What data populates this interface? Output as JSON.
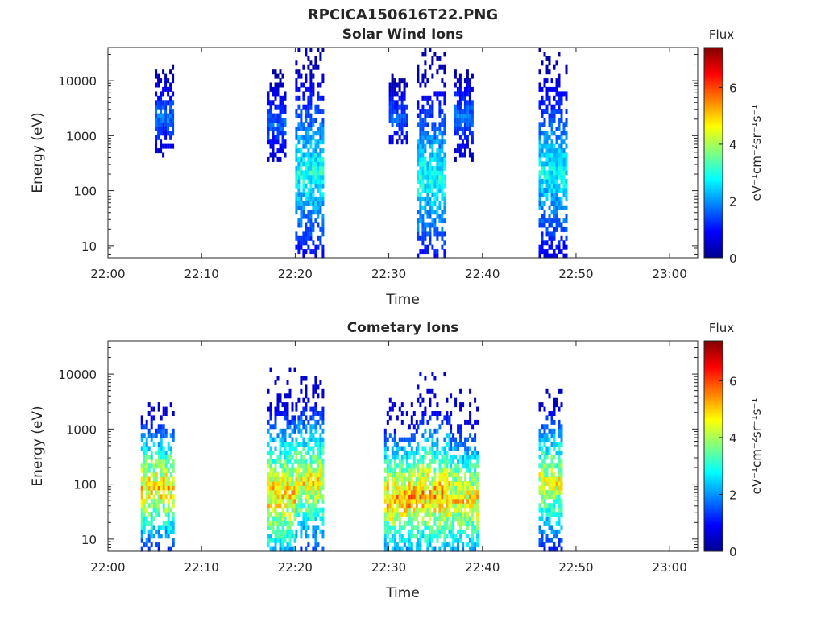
{
  "figure_title": "RPCICA150616T22.PNG",
  "chart_data": [
    {
      "type": "heatmap",
      "title": "Solar Wind Ions",
      "xlabel": "Time",
      "ylabel": "Energy (eV)",
      "x_ticks": [
        "22:00",
        "22:10",
        "22:20",
        "22:30",
        "22:40",
        "22:50",
        "23:00"
      ],
      "x_range": [
        "22:00",
        "23:03"
      ],
      "y_scale": "log",
      "y_ticks": [
        "10",
        "100",
        "1000",
        "10000"
      ],
      "y_range": [
        6,
        40000
      ],
      "colorbar": {
        "label": "Flux",
        "units": "eV⁻¹cm⁻²sr⁻¹s⁻¹",
        "ticks": [
          "0",
          "2",
          "4",
          "6"
        ],
        "range": [
          0,
          7.4
        ],
        "colormap": "jet"
      },
      "bursts": [
        {
          "t_start": "22:05",
          "t_end": "22:07",
          "e_low": 400,
          "e_high": 16000,
          "peak_e": 2000,
          "flux_max": 2.2
        },
        {
          "t_start": "22:17",
          "t_end": "22:19",
          "e_low": 300,
          "e_high": 15000,
          "peak_e": 1500,
          "flux_max": 2.0
        },
        {
          "t_start": "22:20",
          "t_end": "22:23",
          "e_low": 6,
          "e_high": 40000,
          "peak_e": 200,
          "flux_max": 3.6
        },
        {
          "t_start": "22:30",
          "t_end": "22:32",
          "e_low": 600,
          "e_high": 15000,
          "peak_e": 2000,
          "flux_max": 2.0
        },
        {
          "t_start": "22:33",
          "t_end": "22:36",
          "e_low": 6,
          "e_high": 35000,
          "peak_e": 150,
          "flux_max": 3.6
        },
        {
          "t_start": "22:37",
          "t_end": "22:39",
          "e_low": 300,
          "e_high": 15000,
          "peak_e": 2000,
          "flux_max": 2.2
        },
        {
          "t_start": "22:46",
          "t_end": "22:49",
          "e_low": 6,
          "e_high": 35000,
          "peak_e": 200,
          "flux_max": 3.4
        }
      ]
    },
    {
      "type": "heatmap",
      "title": "Cometary Ions",
      "xlabel": "Time",
      "ylabel": "Energy (eV)",
      "x_ticks": [
        "22:00",
        "22:10",
        "22:20",
        "22:30",
        "22:40",
        "22:50",
        "23:00"
      ],
      "x_range": [
        "22:00",
        "23:03"
      ],
      "y_scale": "log",
      "y_ticks": [
        "10",
        "100",
        "1000",
        "10000"
      ],
      "y_range": [
        6,
        40000
      ],
      "colorbar": {
        "label": "Flux",
        "units": "eV⁻¹cm⁻²sr⁻¹s⁻¹",
        "ticks": [
          "0",
          "2",
          "4",
          "6"
        ],
        "range": [
          0,
          7.4
        ],
        "colormap": "jet"
      },
      "bursts": [
        {
          "t_start": "22:03.5",
          "t_end": "22:07",
          "e_low": 6,
          "e_high": 3000,
          "peak_e": 80,
          "flux_max": 6.0
        },
        {
          "t_start": "22:17",
          "t_end": "22:20",
          "e_low": 6,
          "e_high": 12000,
          "peak_e": 60,
          "flux_max": 6.0
        },
        {
          "t_start": "22:20",
          "t_end": "22:23",
          "e_low": 6,
          "e_high": 8000,
          "peak_e": 100,
          "flux_max": 5.6
        },
        {
          "t_start": "22:29.5",
          "t_end": "22:33",
          "e_low": 6,
          "e_high": 4000,
          "peak_e": 50,
          "flux_max": 6.4
        },
        {
          "t_start": "22:33",
          "t_end": "22:36.5",
          "e_low": 6,
          "e_high": 10000,
          "peak_e": 60,
          "flux_max": 6.2
        },
        {
          "t_start": "22:36.5",
          "t_end": "22:39.5",
          "e_low": 6,
          "e_high": 5000,
          "peak_e": 50,
          "flux_max": 5.8
        },
        {
          "t_start": "22:46",
          "t_end": "22:48.5",
          "e_low": 6,
          "e_high": 4500,
          "peak_e": 100,
          "flux_max": 5.4
        }
      ]
    }
  ]
}
